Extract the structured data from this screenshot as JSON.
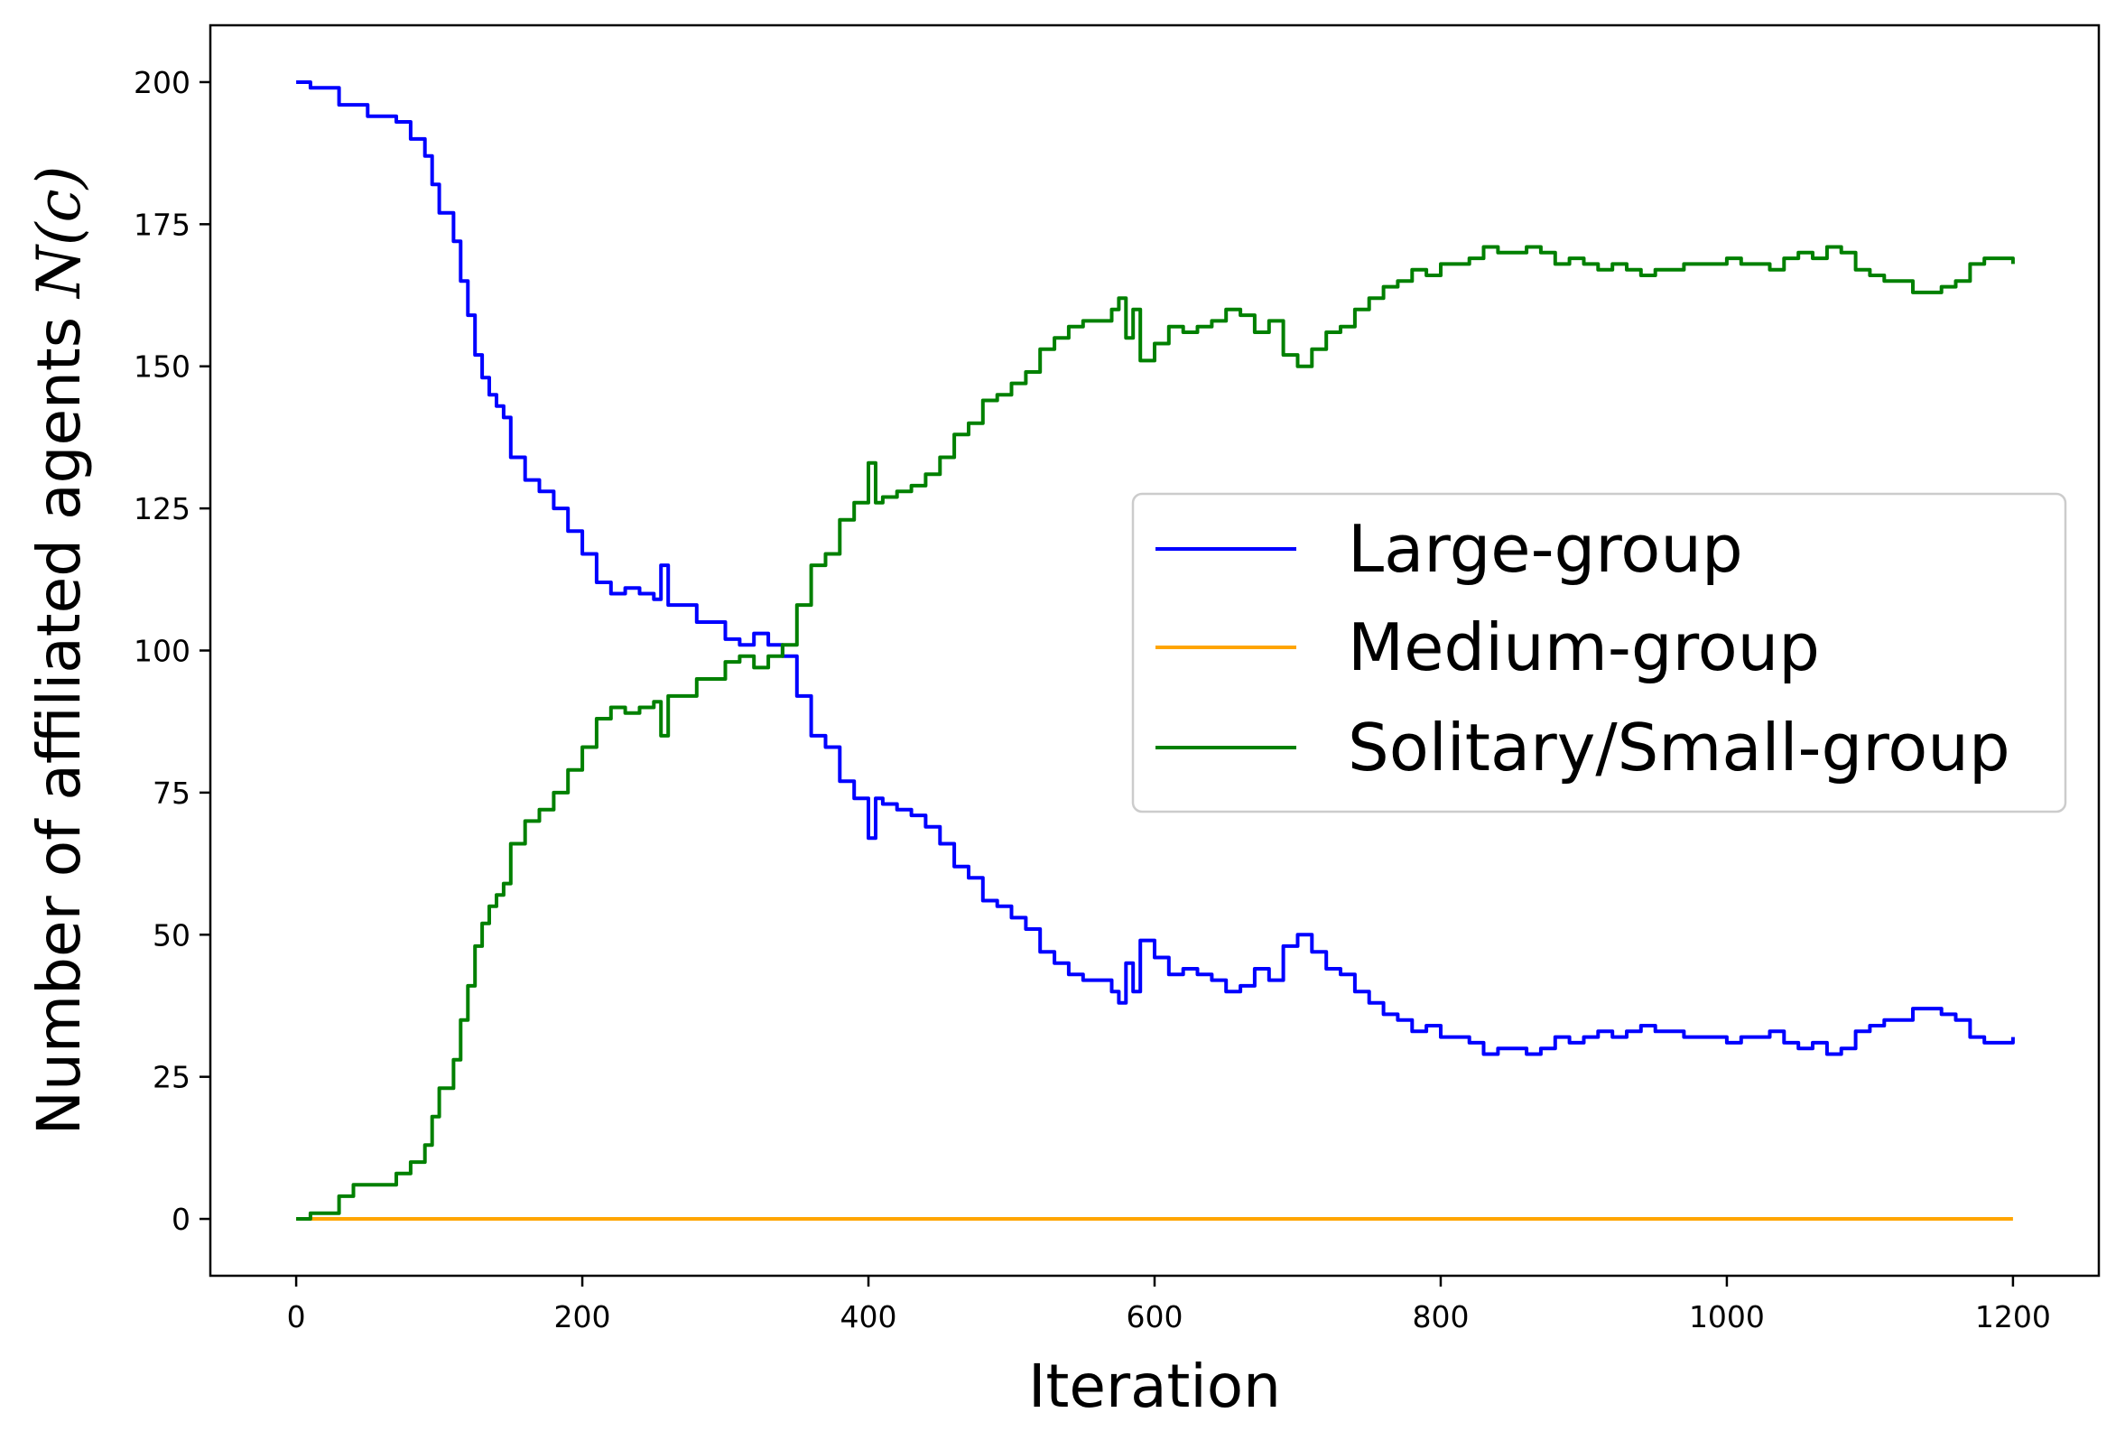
{
  "chart_data": {
    "type": "line",
    "title": "",
    "xlabel": "Iteration",
    "ylabel": "Number of affiliated agents ",
    "ylabel_math": "N(c)",
    "xlim": [
      -60,
      1260
    ],
    "ylim": [
      -10,
      210
    ],
    "xticks": [
      0,
      200,
      400,
      600,
      800,
      1000,
      1200
    ],
    "yticks": [
      0,
      25,
      50,
      75,
      100,
      125,
      150,
      175,
      200
    ],
    "grid": false,
    "legend_position": "center-right",
    "series": [
      {
        "name": "Large-group",
        "color": "#0000ff",
        "x": [
          0,
          10,
          20,
          30,
          40,
          50,
          60,
          70,
          80,
          90,
          95,
          100,
          110,
          115,
          120,
          125,
          130,
          135,
          140,
          145,
          150,
          160,
          170,
          180,
          190,
          200,
          210,
          220,
          230,
          240,
          250,
          255,
          260,
          270,
          280,
          290,
          300,
          310,
          320,
          330,
          340,
          350,
          360,
          370,
          380,
          390,
          400,
          405,
          410,
          420,
          430,
          440,
          450,
          460,
          470,
          480,
          490,
          500,
          510,
          520,
          530,
          540,
          550,
          560,
          570,
          575,
          580,
          585,
          590,
          600,
          610,
          620,
          630,
          640,
          650,
          660,
          670,
          680,
          690,
          700,
          710,
          720,
          730,
          740,
          750,
          760,
          770,
          780,
          790,
          800,
          810,
          820,
          830,
          840,
          850,
          860,
          870,
          880,
          890,
          900,
          910,
          920,
          930,
          940,
          950,
          960,
          970,
          980,
          990,
          1000,
          1010,
          1020,
          1030,
          1040,
          1050,
          1060,
          1070,
          1080,
          1090,
          1100,
          1110,
          1120,
          1130,
          1140,
          1150,
          1160,
          1170,
          1180,
          1190,
          1200
        ],
        "y": [
          200,
          199,
          199,
          196,
          196,
          194,
          194,
          193,
          190,
          187,
          182,
          177,
          172,
          165,
          159,
          152,
          148,
          145,
          143,
          141,
          134,
          130,
          128,
          125,
          121,
          117,
          112,
          110,
          111,
          110,
          109,
          115,
          108,
          108,
          105,
          105,
          102,
          101,
          103,
          101,
          99,
          92,
          85,
          83,
          77,
          74,
          67,
          74,
          73,
          72,
          71,
          69,
          66,
          62,
          60,
          56,
          55,
          53,
          51,
          47,
          45,
          43,
          42,
          42,
          40,
          38,
          45,
          40,
          49,
          46,
          43,
          44,
          43,
          42,
          40,
          41,
          44,
          42,
          48,
          50,
          47,
          44,
          43,
          40,
          38,
          36,
          35,
          33,
          34,
          32,
          32,
          31,
          29,
          30,
          30,
          29,
          30,
          32,
          31,
          32,
          33,
          32,
          33,
          34,
          33,
          33,
          32,
          32,
          32,
          31,
          32,
          32,
          33,
          31,
          30,
          31,
          29,
          30,
          33,
          34,
          35,
          35,
          37,
          37,
          36,
          35,
          32,
          31,
          31,
          32
        ]
      },
      {
        "name": "Medium-group",
        "color": "#ffa500",
        "x": [
          0,
          1200
        ],
        "y": [
          0,
          0
        ]
      },
      {
        "name": "Solitary/Small-group",
        "color": "#008000",
        "x": [
          0,
          10,
          20,
          30,
          40,
          50,
          60,
          70,
          80,
          90,
          95,
          100,
          110,
          115,
          120,
          125,
          130,
          135,
          140,
          145,
          150,
          160,
          170,
          180,
          190,
          200,
          210,
          220,
          230,
          240,
          250,
          255,
          260,
          270,
          280,
          290,
          300,
          310,
          320,
          330,
          340,
          350,
          360,
          370,
          380,
          390,
          400,
          405,
          410,
          420,
          430,
          440,
          450,
          460,
          470,
          480,
          490,
          500,
          510,
          520,
          530,
          540,
          550,
          560,
          570,
          575,
          580,
          585,
          590,
          600,
          610,
          620,
          630,
          640,
          650,
          660,
          670,
          680,
          690,
          700,
          710,
          720,
          730,
          740,
          750,
          760,
          770,
          780,
          790,
          800,
          810,
          820,
          830,
          840,
          850,
          860,
          870,
          880,
          890,
          900,
          910,
          920,
          930,
          940,
          950,
          960,
          970,
          980,
          990,
          1000,
          1010,
          1020,
          1030,
          1040,
          1050,
          1060,
          1070,
          1080,
          1090,
          1100,
          1110,
          1120,
          1130,
          1140,
          1150,
          1160,
          1170,
          1180,
          1190,
          1200
        ],
        "y": [
          0,
          1,
          1,
          4,
          6,
          6,
          6,
          8,
          10,
          13,
          18,
          23,
          28,
          35,
          41,
          48,
          52,
          55,
          57,
          59,
          66,
          70,
          72,
          75,
          79,
          83,
          88,
          90,
          89,
          90,
          91,
          85,
          92,
          92,
          95,
          95,
          98,
          99,
          97,
          99,
          101,
          108,
          115,
          117,
          123,
          126,
          133,
          126,
          127,
          128,
          129,
          131,
          134,
          138,
          140,
          144,
          145,
          147,
          149,
          153,
          155,
          157,
          158,
          158,
          160,
          162,
          155,
          160,
          151,
          154,
          157,
          156,
          157,
          158,
          160,
          159,
          156,
          158,
          152,
          150,
          153,
          156,
          157,
          160,
          162,
          164,
          165,
          167,
          166,
          168,
          168,
          169,
          171,
          170,
          170,
          171,
          170,
          168,
          169,
          168,
          167,
          168,
          167,
          166,
          167,
          167,
          168,
          168,
          168,
          169,
          168,
          168,
          167,
          169,
          170,
          169,
          171,
          170,
          167,
          166,
          165,
          165,
          163,
          163,
          164,
          165,
          168,
          169,
          169,
          168
        ]
      }
    ]
  }
}
